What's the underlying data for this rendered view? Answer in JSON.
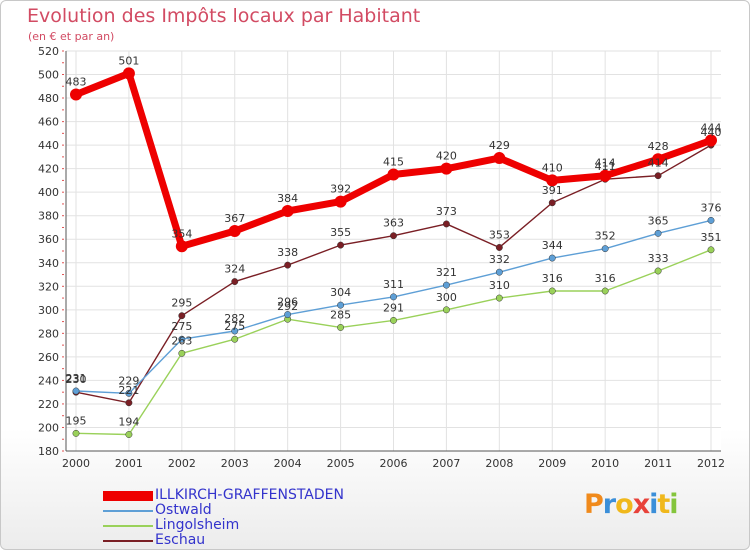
{
  "title": "Evolution des Impôts locaux par Habitant",
  "subtitle": "(en € et par an)",
  "chart_data": {
    "type": "line",
    "title": "Evolution des Impôts locaux par Habitant",
    "subtitle": "(en € et par an)",
    "xlabel": "",
    "ylabel": "",
    "x": [
      "2000",
      "2001",
      "2002",
      "2003",
      "2004",
      "2005",
      "2006",
      "2007",
      "2008",
      "2009",
      "2010",
      "2011",
      "2012"
    ],
    "ylim": [
      180,
      520
    ],
    "yticks": [
      180,
      200,
      220,
      240,
      260,
      280,
      300,
      320,
      340,
      360,
      380,
      400,
      420,
      440,
      460,
      480,
      500,
      520
    ],
    "grid": true,
    "legend_position": "bottom-left",
    "series": [
      {
        "name": "Eschau",
        "color": "#7a1f25",
        "values": [
          230,
          221,
          295,
          324,
          338,
          355,
          363,
          373,
          353,
          391,
          411,
          414,
          440
        ]
      },
      {
        "name": "Lingolsheim",
        "color": "#9ad15a",
        "values": [
          195,
          194,
          263,
          275,
          292,
          285,
          291,
          300,
          310,
          316,
          316,
          333,
          351
        ]
      },
      {
        "name": "Ostwald",
        "color": "#5e9fd6",
        "values": [
          231,
          229,
          275,
          282,
          296,
          304,
          311,
          321,
          332,
          344,
          352,
          365,
          376
        ]
      },
      {
        "name": "ILLKIRCH-GRAFFENSTADEN",
        "color": "#ee0000",
        "values": [
          483,
          501,
          354,
          367,
          384,
          392,
          415,
          420,
          429,
          410,
          414,
          428,
          444
        ]
      }
    ]
  },
  "legend": [
    {
      "label": "ILLKIRCH-GRAFFENSTADEN",
      "color": "#ee0000",
      "text_color": "#3333cc"
    },
    {
      "label": "Ostwald",
      "color": "#5e9fd6",
      "text_color": "#3333cc"
    },
    {
      "label": "Lingolsheim",
      "color": "#9ad15a",
      "text_color": "#3333cc"
    },
    {
      "label": "Eschau",
      "color": "#7a1f25",
      "text_color": "#3333cc"
    }
  ],
  "logo": {
    "text": "Proxiti",
    "letter_colors": [
      "#f08a1c",
      "#3b8fd9",
      "#f0b81c",
      "#e8423a",
      "#3b8fd9",
      "#f0b81c",
      "#84c53c"
    ]
  }
}
